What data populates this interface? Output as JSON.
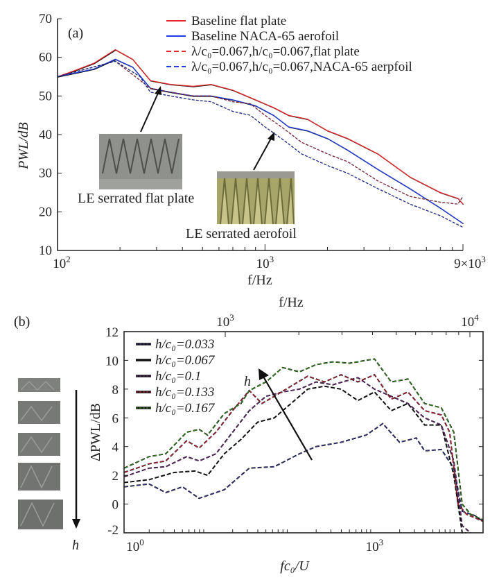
{
  "chart_data": [
    {
      "type": "line",
      "panel_label": "(a)",
      "xlabel": "f/Hz",
      "ylabel": "PWL/dB",
      "xscale": "log",
      "xlim": [
        100,
        9000
      ],
      "ylim": [
        10,
        70
      ],
      "yticks": [
        "10",
        "20",
        "30",
        "40",
        "50",
        "60",
        "70"
      ],
      "xticks": [
        {
          "base": "10",
          "exp": "2"
        },
        {
          "base": "10",
          "exp": "3"
        },
        {
          "base": "9×10",
          "exp": "3"
        }
      ],
      "annotations": [
        "LE serrated flat plate",
        "LE serrated aerofoil"
      ],
      "legend_position": "top-right",
      "series": [
        {
          "name": "Baseline flat plate",
          "color": "#e8262a",
          "dash": false,
          "x": [
            100,
            120,
            150,
            190,
            230,
            280,
            350,
            450,
            550,
            700,
            900,
            1100,
            1300,
            1600,
            2000,
            2500,
            3500,
            5000,
            7000,
            8500,
            9000
          ],
          "y": [
            55,
            56.5,
            58.5,
            62,
            59.5,
            54,
            53,
            52.5,
            53,
            51.5,
            49,
            47,
            45,
            44,
            41,
            39,
            35,
            29,
            25,
            23.5,
            22
          ]
        },
        {
          "name": "Baseline NACA-65 aerofoil",
          "color": "#1f3be0",
          "dash": false,
          "x": [
            100,
            150,
            190,
            230,
            280,
            350,
            450,
            550,
            700,
            900,
            1100,
            1300,
            1600,
            2000,
            2500,
            3500,
            5000,
            7000,
            9000
          ],
          "y": [
            55,
            57,
            59.5,
            57.5,
            52,
            51,
            50,
            50,
            49,
            47.5,
            45,
            42,
            41,
            39,
            36,
            31,
            26,
            21,
            17
          ]
        },
        {
          "name": "λ/c₀=0.067,h/c₀=0.067,flat plate",
          "color": "#e8262a",
          "dash": true,
          "x": [
            100,
            190,
            280,
            350,
            450,
            550,
            700,
            850,
            1000,
            1200,
            1500,
            2000,
            2500,
            3500,
            5000,
            7000,
            8500,
            9000
          ],
          "y": [
            55,
            59,
            52,
            51,
            50,
            50,
            48.5,
            48,
            45,
            42,
            38,
            35,
            33,
            28,
            24,
            22.5,
            22,
            24
          ]
        },
        {
          "name": "λ/c₀=0.067,h/c₀=0.067,NACA-65 aerpfoil",
          "color": "#1f3be0",
          "dash": true,
          "x": [
            100,
            190,
            250,
            280,
            350,
            450,
            550,
            700,
            850,
            1000,
            1200,
            1500,
            2000,
            2500,
            3500,
            5000,
            7000,
            9000
          ],
          "y": [
            55,
            59,
            55,
            51,
            50,
            49,
            48.5,
            46,
            45,
            42,
            39,
            35,
            32,
            30,
            26,
            22,
            19,
            16
          ]
        }
      ]
    },
    {
      "type": "line",
      "panel_label": "(b)",
      "xlabel": "fc₀/U",
      "top_xlabel": "f/Hz",
      "ylabel": "ΔPWL/dB",
      "xscale": "log",
      "log10_xlim": [
        0,
        4.3
      ],
      "ylim": [
        -2,
        12
      ],
      "yticks": [
        "-2",
        "0",
        "2",
        "4",
        "6",
        "8",
        "10",
        "12"
      ],
      "xticks": [
        {
          "base": "10",
          "exp": "0"
        },
        {
          "base": "10",
          "exp": "3"
        }
      ],
      "top_xticks": [
        {
          "base": "10",
          "exp": "3"
        },
        {
          "base": "10",
          "exp": "4"
        }
      ],
      "annotations": [
        "h",
        "h"
      ],
      "legend_position": "top-left",
      "series": [
        {
          "name": "h/c₀=0.033",
          "color": "#3a3aa0",
          "log10_x": [
            0,
            0.3,
            0.5,
            0.7,
            0.9,
            1.2,
            1.5,
            1.8,
            2.1,
            2.3,
            2.6,
            2.9,
            3.0,
            3.1,
            3.3,
            3.5,
            3.6,
            3.8,
            3.95,
            4.05,
            4.2,
            4.3
          ],
          "y": [
            1.2,
            1.4,
            0.8,
            1.2,
            0.4,
            1.0,
            2.5,
            2.6,
            3.5,
            4.0,
            4.3,
            4.8,
            5.2,
            5.6,
            4.3,
            4.6,
            3.7,
            3.8,
            2.5,
            -0.5,
            -0.8,
            -1.2
          ]
        },
        {
          "name": "h/c₀=0.067",
          "color": "#111111",
          "log10_x": [
            0,
            0.3,
            0.6,
            0.85,
            1.0,
            1.2,
            1.4,
            1.6,
            1.8,
            2.0,
            2.2,
            2.4,
            2.6,
            2.8,
            3.0,
            3.2,
            3.4,
            3.6,
            3.8,
            3.95,
            4.05,
            4.1
          ],
          "y": [
            1.5,
            1.7,
            2.2,
            2.3,
            2.0,
            3.5,
            4.5,
            5.7,
            6.0,
            7.0,
            8.0,
            8.2,
            8.0,
            7.2,
            7.8,
            6.5,
            7.0,
            5.5,
            5.5,
            2,
            -2,
            -2.5
          ]
        },
        {
          "name": "h/c₀=0.1",
          "color": "#7a2a8a",
          "log10_x": [
            0,
            0.3,
            0.5,
            0.75,
            0.9,
            1.1,
            1.3,
            1.5,
            1.7,
            1.9,
            2.1,
            2.3,
            2.5,
            2.8,
            3.0,
            3.2,
            3.4,
            3.6,
            3.8,
            3.95,
            4.05,
            4.15
          ],
          "y": [
            1.9,
            2.5,
            2.6,
            3.3,
            3.0,
            3.5,
            5.0,
            6.5,
            7.5,
            7.8,
            8.0,
            8.5,
            8.3,
            8.8,
            8.0,
            7.5,
            7.0,
            6.0,
            5.5,
            3,
            -1.5,
            -2.5
          ]
        },
        {
          "name": "h/c₀=0.133",
          "color": "#e0203a",
          "log10_x": [
            0,
            0.3,
            0.5,
            0.75,
            0.9,
            1.1,
            1.3,
            1.5,
            1.65,
            1.8,
            2.0,
            2.2,
            2.4,
            2.6,
            2.8,
            3.0,
            3.2,
            3.4,
            3.6,
            3.8,
            3.9,
            4.0,
            4.1,
            4.3
          ],
          "y": [
            2.2,
            2.8,
            3.0,
            4.4,
            3.9,
            5.0,
            6.5,
            7.9,
            7.0,
            7.5,
            8.2,
            8.9,
            8.5,
            9.0,
            8.5,
            9.0,
            7.3,
            7.8,
            6.5,
            6.2,
            5.0,
            0,
            -0.7,
            -1.2
          ]
        },
        {
          "name": "h/c₀=0.167",
          "color": "#3aa020",
          "log10_x": [
            0,
            0.3,
            0.5,
            0.75,
            0.9,
            1.0,
            1.2,
            1.4,
            1.5,
            1.7,
            1.9,
            2.1,
            2.3,
            2.5,
            2.7,
            2.9,
            3.0,
            3.2,
            3.4,
            3.6,
            3.8,
            3.95,
            4.05,
            4.15,
            4.3
          ],
          "y": [
            2.5,
            3.3,
            3.5,
            5.0,
            5.2,
            4.8,
            6.3,
            7.0,
            7.9,
            8.5,
            9.5,
            9.2,
            9.7,
            9.9,
            9.8,
            10.0,
            10.1,
            8.5,
            8.7,
            7.0,
            6.7,
            5.0,
            0,
            -0.7,
            -1.1
          ]
        }
      ]
    }
  ]
}
